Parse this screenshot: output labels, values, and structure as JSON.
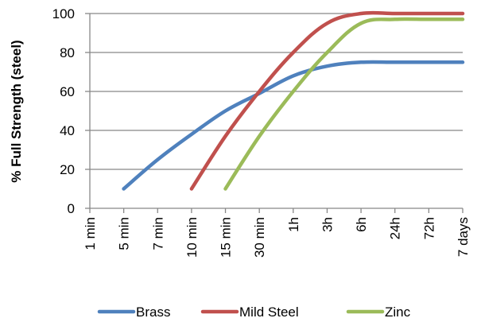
{
  "chart_data": {
    "type": "line",
    "title": "",
    "xlabel": "",
    "ylabel": "% Full Strength (steel)",
    "categories": [
      "1 min",
      "5 min",
      "7 min",
      "10 min",
      "15 min",
      "30 min",
      "1h",
      "3h",
      "6h",
      "24h",
      "72h",
      "7 days"
    ],
    "ylim": [
      0,
      100
    ],
    "yticks": [
      0,
      20,
      40,
      60,
      80,
      100
    ],
    "grid": "horizontal",
    "legend": "bottom",
    "series": [
      {
        "name": "Brass",
        "color": "#4f81bd",
        "x": [
          "5 min",
          "7 min",
          "10 min",
          "15 min",
          "30 min",
          "1h",
          "3h",
          "6h",
          "24h",
          "72h",
          "7 days"
        ],
        "values": [
          10,
          25,
          38,
          50,
          59,
          68,
          73,
          75,
          75,
          75,
          75
        ]
      },
      {
        "name": "Mild Steel",
        "color": "#c0504d",
        "x": [
          "10 min",
          "15 min",
          "30 min",
          "1h",
          "3h",
          "6h",
          "24h",
          "72h",
          "7 days"
        ],
        "values": [
          10,
          37,
          60,
          80,
          95,
          100,
          100,
          100,
          100
        ]
      },
      {
        "name": "Zinc",
        "color": "#9bbb59",
        "x": [
          "15 min",
          "30 min",
          "1h",
          "3h",
          "6h",
          "24h",
          "72h",
          "7 days"
        ],
        "values": [
          10,
          37,
          60,
          80,
          95,
          97,
          97,
          97
        ]
      }
    ]
  }
}
